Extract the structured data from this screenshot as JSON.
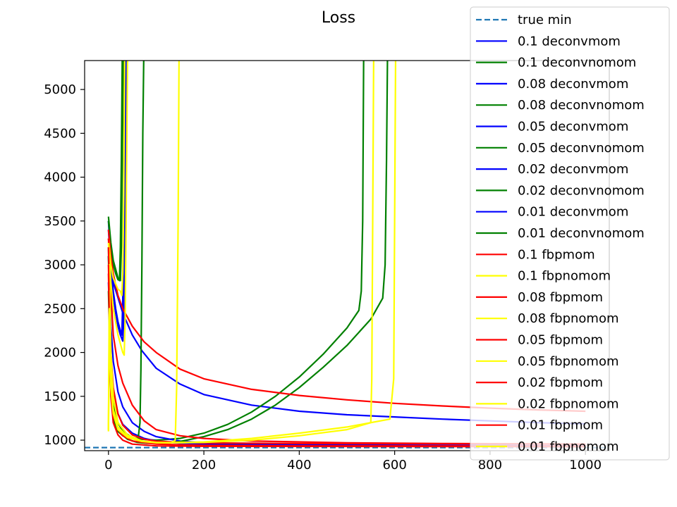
{
  "chart_data": {
    "type": "line",
    "title": "Loss",
    "xlabel": "",
    "ylabel": "",
    "xlim": [
      -50,
      1050
    ],
    "ylim": [
      880,
      5330
    ],
    "x_ticks": [
      0,
      200,
      400,
      600,
      800,
      1000
    ],
    "y_ticks": [
      1000,
      1500,
      2000,
      2500,
      3000,
      3500,
      4000,
      4500,
      5000
    ],
    "grid": false,
    "legend_position": "top-right",
    "true_min": 915,
    "series": [
      {
        "name": "true min",
        "color": "#1f77b4",
        "style": "dashed",
        "points": [
          [
            -50,
            915
          ],
          [
            1050,
            915
          ]
        ]
      },
      {
        "name": "0.1 deconvmom",
        "color": "#0000ff",
        "style": "solid",
        "points": [
          [
            0,
            3500
          ],
          [
            5,
            3000
          ],
          [
            10,
            2700
          ],
          [
            15,
            2500
          ],
          [
            20,
            2350
          ],
          [
            25,
            2250
          ],
          [
            28,
            2200
          ],
          [
            30,
            2600
          ],
          [
            32,
            3500
          ],
          [
            34,
            5400
          ]
        ]
      },
      {
        "name": "0.1 deconvnomom",
        "color": "#008000",
        "style": "solid",
        "points": [
          [
            0,
            3550
          ],
          [
            5,
            3250
          ],
          [
            10,
            3050
          ],
          [
            15,
            2950
          ],
          [
            20,
            2850
          ],
          [
            23,
            2820
          ],
          [
            25,
            3200
          ],
          [
            27,
            4200
          ],
          [
            29,
            5400
          ]
        ]
      },
      {
        "name": "0.08 deconvmom",
        "color": "#0000ff",
        "style": "solid",
        "points": [
          [
            0,
            3400
          ],
          [
            5,
            2950
          ],
          [
            10,
            2650
          ],
          [
            15,
            2450
          ],
          [
            20,
            2300
          ],
          [
            25,
            2200
          ],
          [
            30,
            2130
          ],
          [
            33,
            2500
          ],
          [
            35,
            3500
          ],
          [
            37,
            5400
          ]
        ]
      },
      {
        "name": "0.08 deconvnomom",
        "color": "#008000",
        "style": "solid",
        "points": [
          [
            0,
            3500
          ],
          [
            5,
            3200
          ],
          [
            10,
            3000
          ],
          [
            15,
            2900
          ],
          [
            20,
            2830
          ],
          [
            25,
            2820
          ],
          [
            27,
            3200
          ],
          [
            29,
            4200
          ],
          [
            31,
            5400
          ]
        ]
      },
      {
        "name": "0.05 deconvmom",
        "color": "#0000ff",
        "style": "solid",
        "points": [
          [
            0,
            3300
          ],
          [
            10,
            2800
          ],
          [
            30,
            2450
          ],
          [
            50,
            2200
          ],
          [
            70,
            2020
          ],
          [
            100,
            1820
          ],
          [
            150,
            1640
          ],
          [
            200,
            1520
          ],
          [
            300,
            1400
          ],
          [
            400,
            1330
          ],
          [
            500,
            1290
          ],
          [
            600,
            1265
          ],
          [
            700,
            1240
          ],
          [
            800,
            1220
          ],
          [
            900,
            1200
          ],
          [
            1000,
            1185
          ]
        ]
      },
      {
        "name": "0.05 deconvnomom",
        "color": "#008000",
        "style": "solid",
        "points": [
          [
            0,
            3200
          ],
          [
            5,
            1800
          ],
          [
            10,
            1400
          ],
          [
            20,
            1200
          ],
          [
            30,
            1100
          ],
          [
            50,
            1030
          ],
          [
            70,
            1010
          ],
          [
            100,
            1000
          ],
          [
            150,
            1020
          ],
          [
            200,
            1080
          ],
          [
            250,
            1180
          ],
          [
            300,
            1320
          ],
          [
            350,
            1500
          ],
          [
            400,
            1720
          ],
          [
            450,
            1980
          ],
          [
            500,
            2280
          ],
          [
            525,
            2480
          ],
          [
            530,
            2700
          ],
          [
            533,
            3500
          ],
          [
            535,
            5400
          ]
        ]
      },
      {
        "name": "0.02 deconvmom",
        "color": "#0000ff",
        "style": "solid",
        "points": [
          [
            0,
            3100
          ],
          [
            5,
            2300
          ],
          [
            10,
            1900
          ],
          [
            20,
            1550
          ],
          [
            30,
            1380
          ],
          [
            50,
            1200
          ],
          [
            75,
            1100
          ],
          [
            100,
            1040
          ],
          [
            150,
            990
          ],
          [
            200,
            970
          ],
          [
            300,
            955
          ],
          [
            500,
            945
          ],
          [
            700,
            940
          ],
          [
            1000,
            935
          ]
        ]
      },
      {
        "name": "0.02 deconvnomom",
        "color": "#008000",
        "style": "solid",
        "points": [
          [
            0,
            3100
          ],
          [
            5,
            1600
          ],
          [
            10,
            1250
          ],
          [
            20,
            1100
          ],
          [
            40,
            1010
          ],
          [
            60,
            975
          ],
          [
            80,
            965
          ],
          [
            100,
            962
          ],
          [
            150,
            985
          ],
          [
            200,
            1040
          ],
          [
            250,
            1120
          ],
          [
            300,
            1240
          ],
          [
            350,
            1400
          ],
          [
            400,
            1600
          ],
          [
            450,
            1830
          ],
          [
            500,
            2080
          ],
          [
            550,
            2380
          ],
          [
            575,
            2620
          ],
          [
            580,
            3000
          ],
          [
            583,
            4200
          ],
          [
            585,
            5400
          ]
        ]
      },
      {
        "name": "0.01 deconvmom",
        "color": "#0000ff",
        "style": "solid",
        "points": [
          [
            0,
            2800
          ],
          [
            5,
            1900
          ],
          [
            10,
            1550
          ],
          [
            20,
            1300
          ],
          [
            30,
            1180
          ],
          [
            50,
            1080
          ],
          [
            75,
            1020
          ],
          [
            100,
            990
          ],
          [
            150,
            965
          ],
          [
            200,
            955
          ],
          [
            400,
            945
          ],
          [
            700,
            940
          ],
          [
            1000,
            935
          ]
        ]
      },
      {
        "name": "0.01 deconvnomom",
        "color": "#008000",
        "style": "solid",
        "points": [
          [
            0,
            2700
          ],
          [
            5,
            1550
          ],
          [
            10,
            1250
          ],
          [
            20,
            1100
          ],
          [
            30,
            1050
          ],
          [
            50,
            1020
          ],
          [
            62,
            1015
          ],
          [
            66,
            1200
          ],
          [
            68,
            1800
          ],
          [
            70,
            3000
          ],
          [
            72,
            4500
          ],
          [
            74,
            5400
          ]
        ]
      },
      {
        "name": "0.1 fbpmom",
        "color": "#ff0000",
        "style": "solid",
        "points": [
          [
            0,
            3400
          ],
          [
            5,
            3100
          ],
          [
            10,
            2900
          ],
          [
            20,
            2650
          ],
          [
            30,
            2500
          ],
          [
            50,
            2300
          ],
          [
            75,
            2120
          ],
          [
            100,
            2000
          ],
          [
            150,
            1810
          ],
          [
            200,
            1700
          ],
          [
            300,
            1580
          ],
          [
            400,
            1510
          ],
          [
            500,
            1460
          ],
          [
            600,
            1420
          ],
          [
            700,
            1390
          ],
          [
            800,
            1365
          ],
          [
            900,
            1345
          ],
          [
            1000,
            1330
          ]
        ]
      },
      {
        "name": "0.1 fbpnomom",
        "color": "#ffff00",
        "style": "solid",
        "points": [
          [
            0,
            3300
          ],
          [
            5,
            3000
          ],
          [
            10,
            2850
          ],
          [
            20,
            2720
          ],
          [
            25,
            2700
          ],
          [
            28,
            2650
          ],
          [
            30,
            2900
          ],
          [
            32,
            3800
          ],
          [
            34,
            5400
          ]
        ]
      },
      {
        "name": "0.08 fbpmom",
        "color": "#ff0000",
        "style": "solid",
        "points": [
          [
            0,
            3300
          ],
          [
            5,
            2700
          ],
          [
            10,
            2200
          ],
          [
            20,
            1850
          ],
          [
            30,
            1650
          ],
          [
            50,
            1400
          ],
          [
            75,
            1220
          ],
          [
            100,
            1120
          ],
          [
            150,
            1050
          ],
          [
            200,
            1020
          ],
          [
            300,
            990
          ],
          [
            500,
            970
          ],
          [
            700,
            962
          ],
          [
            1000,
            955
          ]
        ]
      },
      {
        "name": "0.08 fbpnomom",
        "color": "#ffff00",
        "style": "solid",
        "points": [
          [
            0,
            3250
          ],
          [
            5,
            2800
          ],
          [
            10,
            2500
          ],
          [
            20,
            2200
          ],
          [
            30,
            2000
          ],
          [
            33,
            1970
          ],
          [
            35,
            2400
          ],
          [
            37,
            3500
          ],
          [
            40,
            5400
          ]
        ]
      },
      {
        "name": "0.05 fbpmom",
        "color": "#ff0000",
        "style": "solid",
        "points": [
          [
            0,
            3200
          ],
          [
            5,
            2000
          ],
          [
            10,
            1600
          ],
          [
            20,
            1300
          ],
          [
            30,
            1170
          ],
          [
            50,
            1060
          ],
          [
            75,
            1010
          ],
          [
            100,
            990
          ],
          [
            150,
            975
          ],
          [
            200,
            968
          ],
          [
            400,
            962
          ],
          [
            700,
            958
          ],
          [
            1000,
            955
          ]
        ]
      },
      {
        "name": "0.05 fbpnomom",
        "color": "#ffff00",
        "style": "solid",
        "points": [
          [
            0,
            1120
          ],
          [
            2,
            3000
          ],
          [
            5,
            2000
          ],
          [
            10,
            1500
          ],
          [
            20,
            1200
          ],
          [
            40,
            1060
          ],
          [
            70,
            990
          ],
          [
            100,
            970
          ],
          [
            130,
            965
          ],
          [
            140,
            1000
          ],
          [
            143,
            1600
          ],
          [
            146,
            3500
          ],
          [
            148,
            5400
          ]
        ]
      },
      {
        "name": "0.02 fbpmom",
        "color": "#ff0000",
        "style": "solid",
        "points": [
          [
            0,
            3000
          ],
          [
            5,
            1600
          ],
          [
            10,
            1300
          ],
          [
            20,
            1120
          ],
          [
            30,
            1050
          ],
          [
            50,
            990
          ],
          [
            100,
            955
          ],
          [
            200,
            940
          ],
          [
            400,
            935
          ],
          [
            700,
            933
          ],
          [
            1000,
            932
          ]
        ]
      },
      {
        "name": "0.02 fbpnomom",
        "color": "#ffff00",
        "style": "solid",
        "points": [
          [
            0,
            1110
          ],
          [
            2,
            2700
          ],
          [
            5,
            1700
          ],
          [
            10,
            1350
          ],
          [
            20,
            1150
          ],
          [
            40,
            1040
          ],
          [
            70,
            990
          ],
          [
            100,
            975
          ],
          [
            150,
            970
          ],
          [
            200,
            975
          ],
          [
            300,
            1000
          ],
          [
            400,
            1050
          ],
          [
            500,
            1120
          ],
          [
            550,
            1200
          ],
          [
            552,
            1700
          ],
          [
            554,
            3500
          ],
          [
            556,
            5400
          ]
        ]
      },
      {
        "name": "0.01 fbpmom",
        "color": "#ff0000",
        "style": "solid",
        "points": [
          [
            0,
            2900
          ],
          [
            5,
            1500
          ],
          [
            10,
            1200
          ],
          [
            20,
            1060
          ],
          [
            30,
            1000
          ],
          [
            50,
            955
          ],
          [
            100,
            935
          ],
          [
            200,
            930
          ],
          [
            500,
            928
          ],
          [
            1000,
            925
          ]
        ]
      },
      {
        "name": "0.01 fbpnomom",
        "color": "#ffff00",
        "style": "solid",
        "points": [
          [
            0,
            1100
          ],
          [
            2,
            2500
          ],
          [
            5,
            1600
          ],
          [
            10,
            1300
          ],
          [
            20,
            1120
          ],
          [
            40,
            1030
          ],
          [
            70,
            985
          ],
          [
            100,
            970
          ],
          [
            200,
            980
          ],
          [
            300,
            1020
          ],
          [
            400,
            1080
          ],
          [
            500,
            1150
          ],
          [
            590,
            1240
          ],
          [
            598,
            1700
          ],
          [
            600,
            3500
          ],
          [
            602,
            5400
          ]
        ]
      }
    ]
  }
}
